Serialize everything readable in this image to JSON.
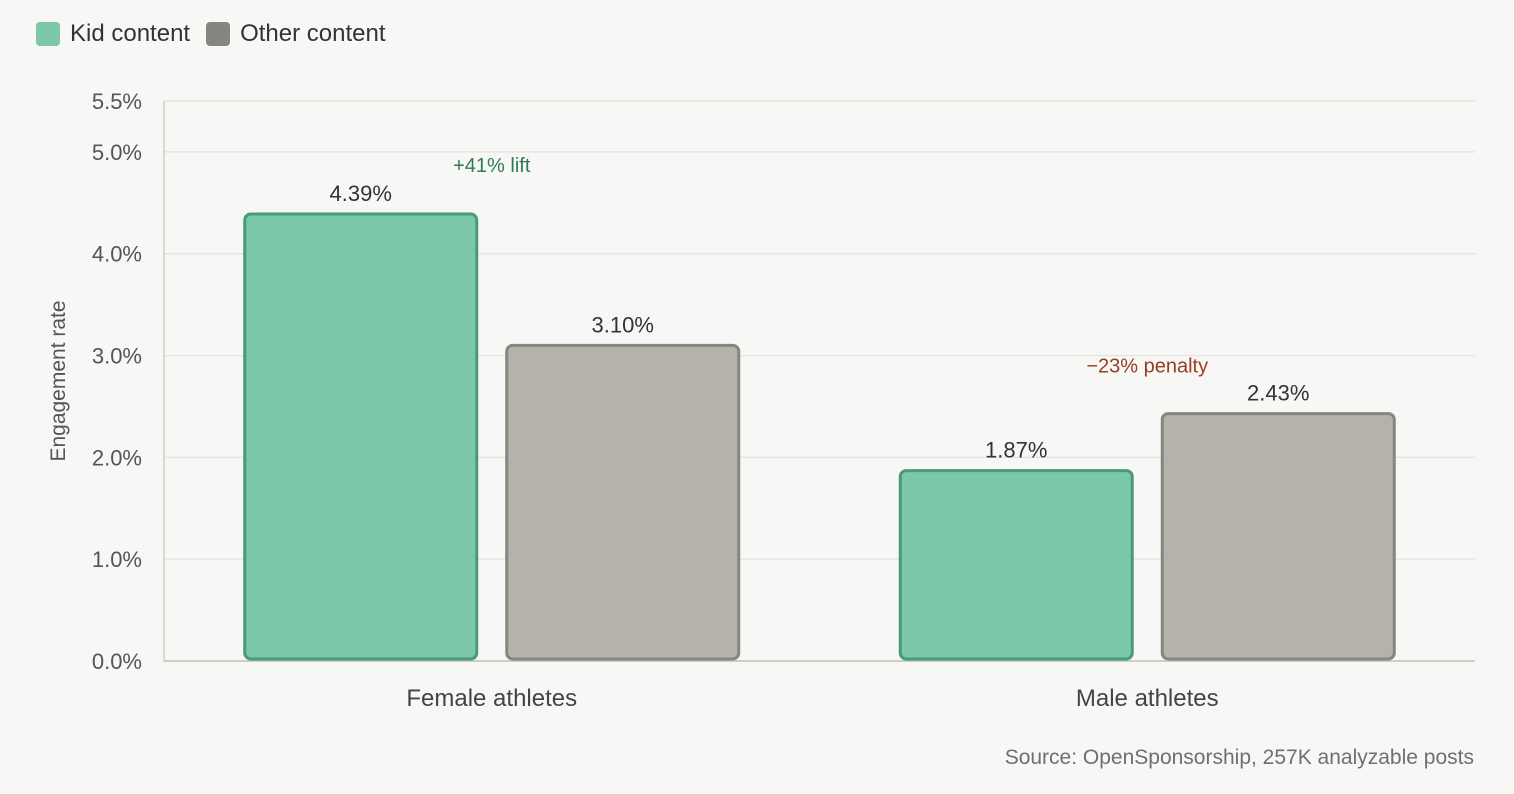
{
  "chart_data": {
    "type": "bar",
    "categories": [
      "Female athletes",
      "Male athletes"
    ],
    "series": [
      {
        "name": "Kid content",
        "values": [
          4.39,
          1.87
        ],
        "labels": [
          "4.39%",
          "1.87%"
        ],
        "fill": "#7bc8a8",
        "stroke": "#4a9a78"
      },
      {
        "name": "Other content",
        "values": [
          3.1,
          2.43
        ],
        "labels": [
          "3.10%",
          "2.43%"
        ],
        "fill": "#b5b2ab",
        "stroke": "#878580"
      }
    ],
    "ylabel": "Engagement rate",
    "ylim": [
      0,
      5.5
    ],
    "yticks": [
      0,
      1,
      2,
      3,
      4,
      5,
      5.5
    ],
    "ytick_labels": [
      "0.0%",
      "1.0%",
      "2.0%",
      "3.0%",
      "4.0%",
      "5.0%",
      "5.5%"
    ],
    "grid": true,
    "legend_position": "top-left",
    "annotations": [
      {
        "category": "Female athletes",
        "text": "+41% lift",
        "color": "#2f7a57",
        "y": 4.87
      },
      {
        "category": "Male athletes",
        "text": "−23% penalty",
        "color": "#9a3c24",
        "y": 2.9
      }
    ]
  },
  "legend": {
    "items": [
      {
        "label": "Kid content",
        "color": "#7bc8a8"
      },
      {
        "label": "Other content",
        "color": "#878580"
      }
    ]
  },
  "source": "Source: OpenSponsorship, 257K analyzable posts"
}
